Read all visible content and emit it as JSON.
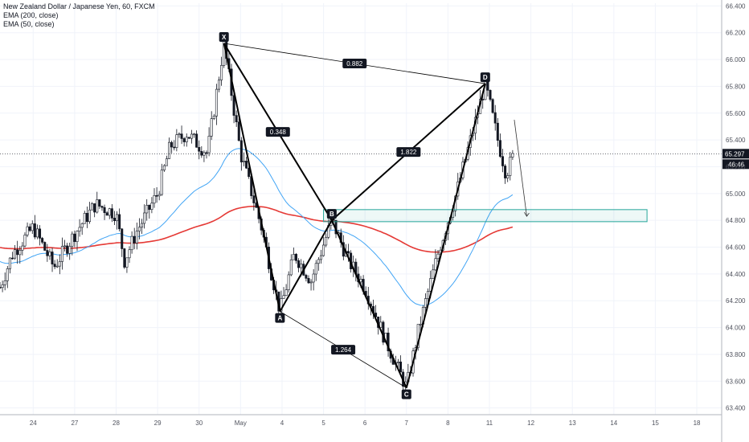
{
  "legend": {
    "title": "New Zealand Dollar / Japanese Yen, 60, FXCM",
    "ema200": "EMA (200, close)",
    "ema50": "EMA (50, close)"
  },
  "colors": {
    "candle": "#131722",
    "ema200": "#e53935",
    "ema50": "#42a5f5",
    "zone": "#26a69a",
    "label_bg": "#131722",
    "label_text": "#ffffff",
    "grid": "#f0f3fa",
    "axis_text": "#50535e"
  },
  "chart_data": {
    "type": "candlestick",
    "y_axis": {
      "range": [
        63.35,
        66.42
      ],
      "ticks": [
        "66.400",
        "66.200",
        "66.000",
        "65.800",
        "65.600",
        "65.400",
        "65.200",
        "65.000",
        "64.800",
        "64.600",
        "64.400",
        "64.200",
        "64.000",
        "63.800",
        "63.600",
        "63.400"
      ]
    },
    "x_axis": {
      "ticks": [
        "24",
        "27",
        "28",
        "29",
        "30",
        "May",
        "4",
        "5",
        "6",
        "7",
        "8",
        "11",
        "12",
        "13",
        "14",
        "15",
        "18"
      ],
      "range_index": [
        -0.8,
        16.6
      ]
    },
    "current_price": "65.297",
    "countdown": "46:46",
    "pattern": {
      "points": [
        {
          "label": "X",
          "t": 4.6,
          "price": 66.12
        },
        {
          "label": "A",
          "t": 5.95,
          "price": 64.12
        },
        {
          "label": "B",
          "t": 7.2,
          "price": 64.8
        },
        {
          "label": "C",
          "t": 9.0,
          "price": 63.55
        },
        {
          "label": "D",
          "t": 10.9,
          "price": 65.82
        }
      ],
      "ratios": [
        {
          "value": "0.882",
          "from": "X",
          "to": "D"
        },
        {
          "value": "0.348",
          "from": "X",
          "to": "B"
        },
        {
          "value": "1.822",
          "from": "B",
          "to": "D"
        },
        {
          "value": "1.264",
          "from": "A",
          "to": "C"
        }
      ]
    },
    "target_zone": {
      "t_start": 7.0,
      "t_end": 14.8,
      "price_low": 64.79,
      "price_high": 64.88
    },
    "projection": {
      "from": {
        "t": 11.6,
        "price": 65.55
      },
      "to": {
        "t": 11.9,
        "price": 64.83
      }
    }
  }
}
